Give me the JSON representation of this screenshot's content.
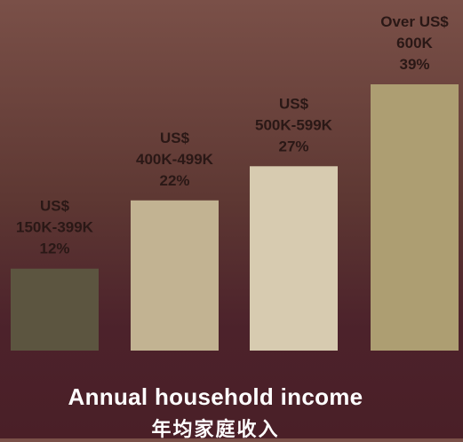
{
  "chart_data": {
    "type": "bar",
    "categories": [
      "US$ 150K-399K",
      "US$ 400K-499K",
      "US$ 500K-599K",
      "Over US$ 600K"
    ],
    "label_lines": [
      [
        "US$",
        "150K-399K",
        "12%"
      ],
      [
        "US$",
        "400K-499K",
        "22%"
      ],
      [
        "US$",
        "500K-599K",
        "27%"
      ],
      [
        "Over US$",
        "600K",
        "39%"
      ]
    ],
    "values": [
      12,
      22,
      27,
      39
    ],
    "unit": "%",
    "xlabel": "Annual household income",
    "xlabel_secondary": "年均家庭收入",
    "ylim": [
      0,
      39
    ],
    "grid": false,
    "legend": "none",
    "colors": [
      "#5c5540",
      "#c2b392",
      "#d7cbb0",
      "#ad9e72"
    ]
  }
}
